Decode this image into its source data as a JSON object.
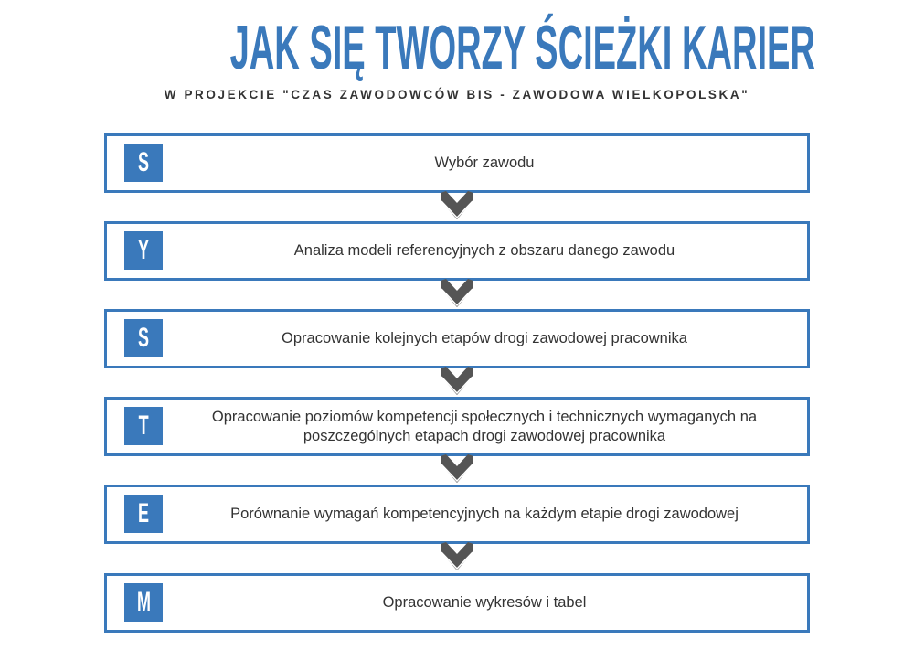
{
  "title": "JAK SIĘ TWORZY ŚCIEŻKI KARIER",
  "subtitle": "W PROJEKCIE \"CZAS ZAWODOWCÓW BIS - ZAWODOWA WIELKOPOLSKA\"",
  "colors": {
    "accent": "#3a79bb",
    "chevron": "#555555",
    "text": "#333333"
  },
  "steps": [
    {
      "letter": "S",
      "text": "Wybór zawodu"
    },
    {
      "letter": "Y",
      "text": "Analiza modeli referencyjnych z obszaru danego zawodu"
    },
    {
      "letter": "S",
      "text": "Opracowanie kolejnych etapów drogi zawodowej pracownika"
    },
    {
      "letter": "T",
      "text": "Opracowanie poziomów kompetencji społecznych i technicznych wymaganych na poszczególnych etapach drogi zawodowej pracownika"
    },
    {
      "letter": "E",
      "text": "Porównanie wymagań kompetencyjnych na każdym etapie drogi zawodowej"
    },
    {
      "letter": "M",
      "text": "Opracowanie wykresów i tabel"
    }
  ]
}
